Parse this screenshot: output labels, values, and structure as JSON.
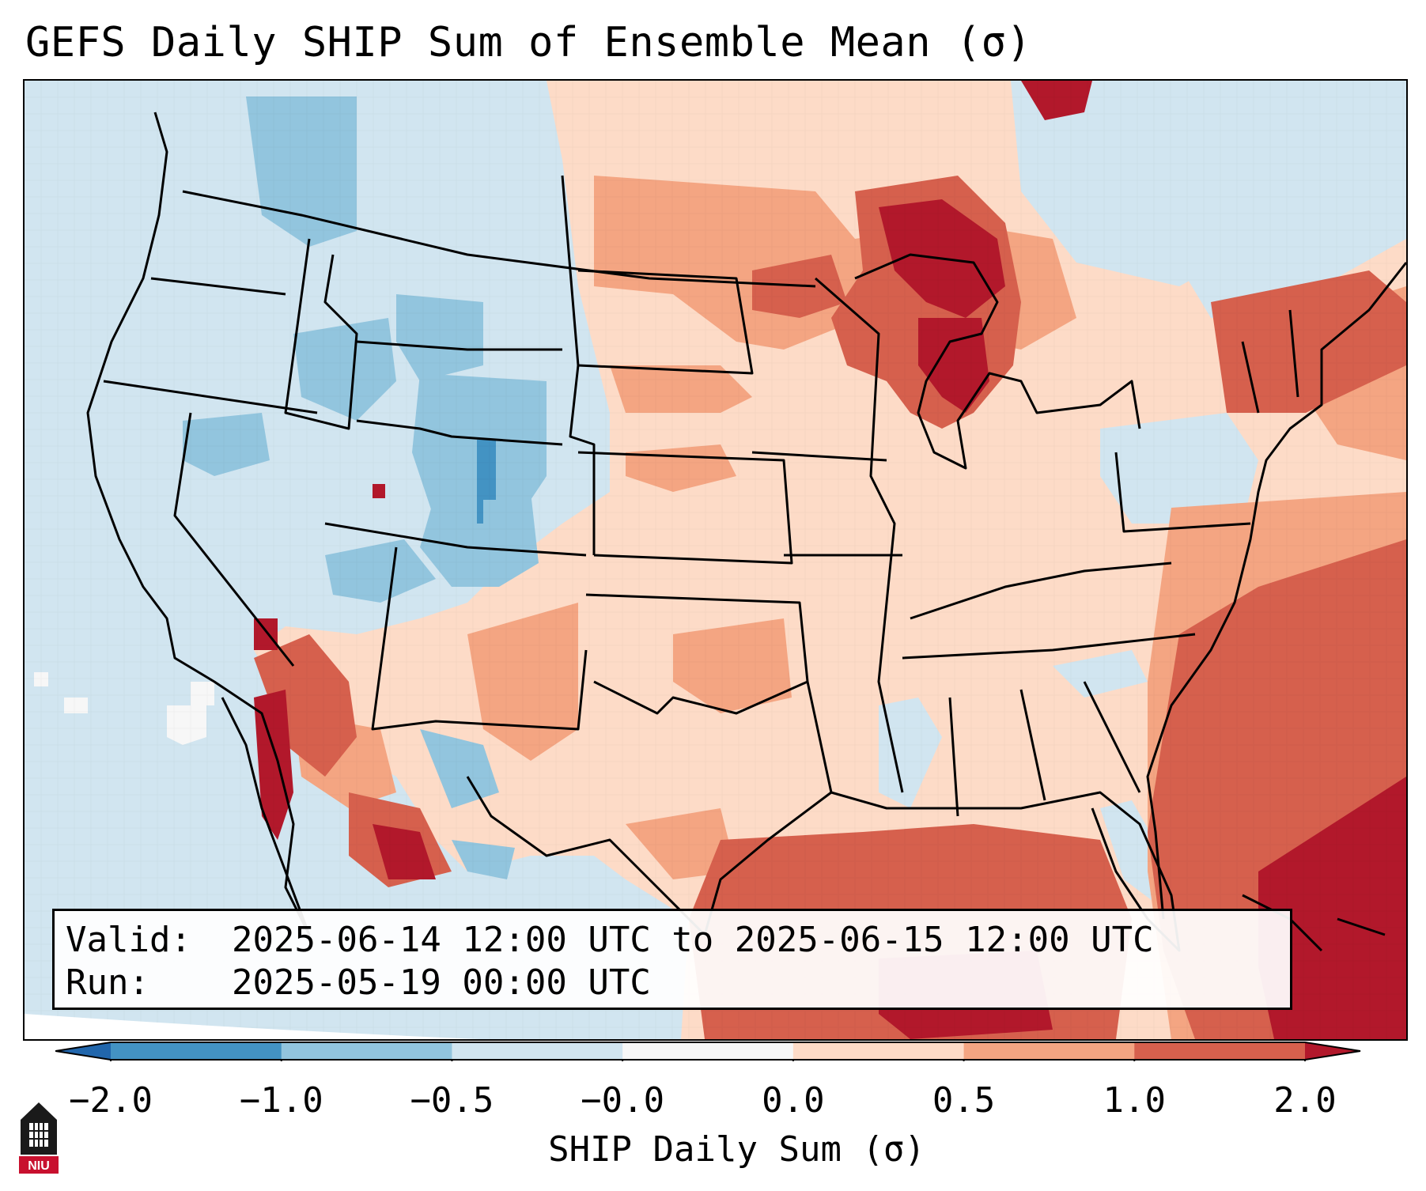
{
  "title": "GEFS Daily SHIP Sum of Ensemble Mean (σ)",
  "info": {
    "valid_label": "Valid:",
    "valid_value": "2025-06-14 12:00 UTC to 2025-06-15 12:00 UTC",
    "run_label": "Run:",
    "run_value": "2025-05-19 00:00 UTC"
  },
  "colorbar": {
    "label": "SHIP Daily Sum (σ)",
    "ticks": [
      "−2.0",
      "−1.0",
      "−0.5",
      "−0.0",
      "0.0",
      "0.5",
      "1.0",
      "2.0"
    ],
    "bins": [
      {
        "range": "< -2.0",
        "color": "#2166ac"
      },
      {
        "range": "-2.0 to -1.0",
        "color": "#4393c3"
      },
      {
        "range": "-1.0 to -0.5",
        "color": "#92c5de"
      },
      {
        "range": "-0.5 to -0.0",
        "color": "#d1e5f0"
      },
      {
        "range": "-0.0 to 0.0",
        "color": "#f7f7f7"
      },
      {
        "range": "0.0 to 0.5",
        "color": "#fddbc7"
      },
      {
        "range": "0.5 to 1.0",
        "color": "#f4a582"
      },
      {
        "range": "1.0 to 2.0",
        "color": "#d6604d"
      },
      {
        "range": "> 2.0",
        "color": "#b2182b"
      }
    ]
  },
  "logo": {
    "text": "NIU"
  }
}
